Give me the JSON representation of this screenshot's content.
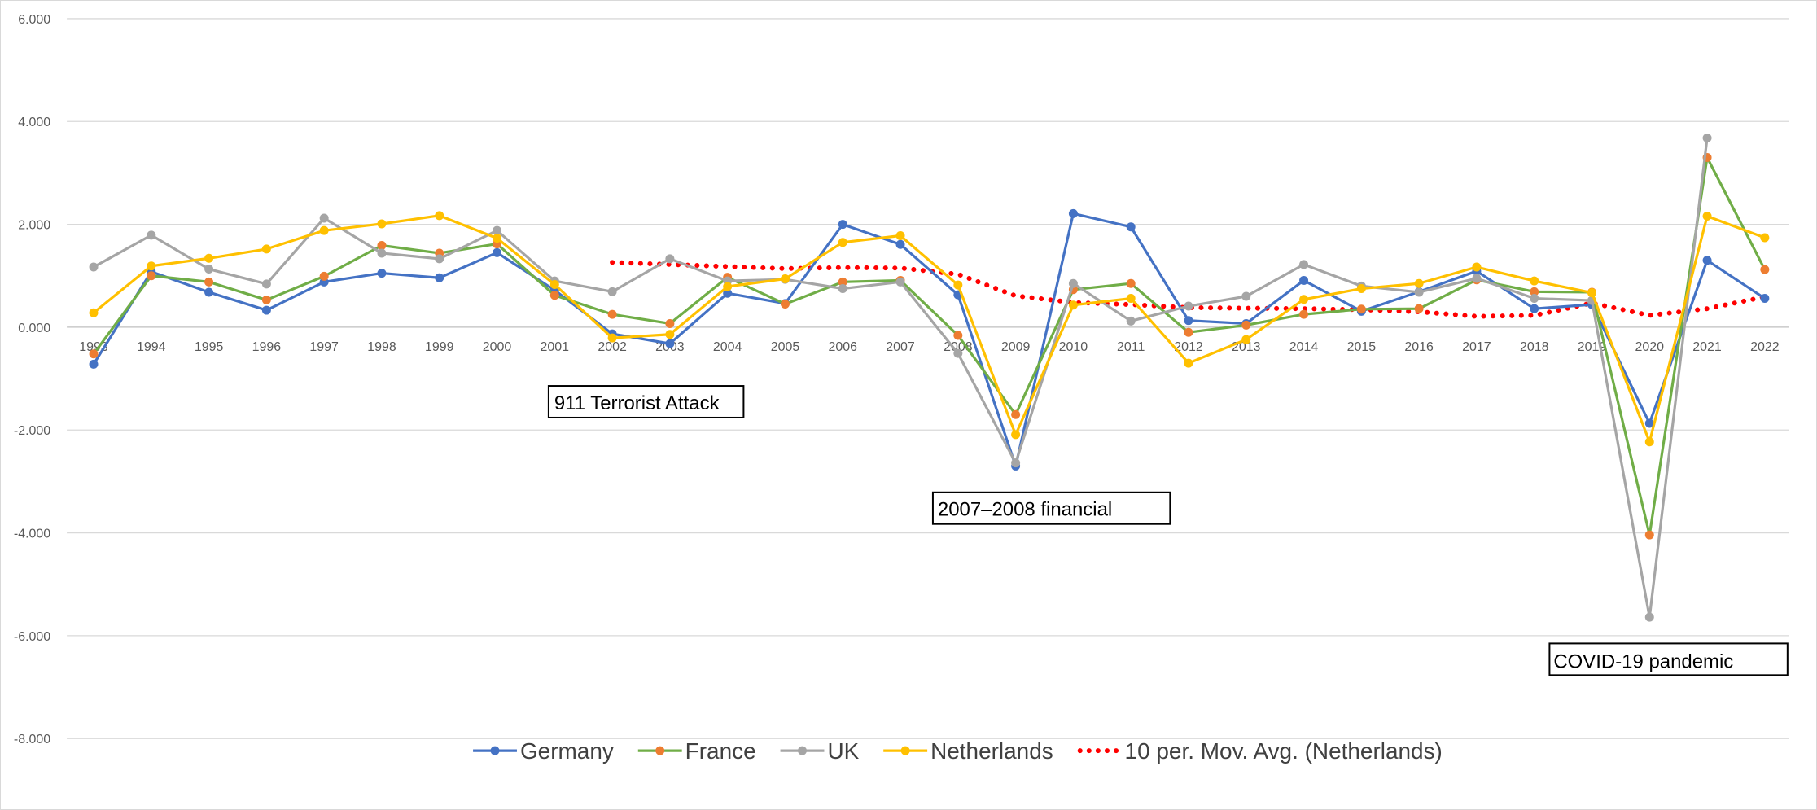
{
  "chart_data": {
    "type": "line",
    "title": "",
    "xlabel": "",
    "ylabel": "",
    "ylim": [
      -8,
      6
    ],
    "y_ticks": [
      "6.000",
      "4.000",
      "2.000",
      "0.000",
      "-2.000",
      "-4.000",
      "-6.000",
      "-8.000"
    ],
    "y_tick_values": [
      6,
      4,
      2,
      0,
      -2,
      -4,
      -6,
      -8
    ],
    "grid": true,
    "legend_position": "bottom",
    "categories": [
      "1993",
      "1994",
      "1995",
      "1996",
      "1997",
      "1998",
      "1999",
      "2000",
      "2001",
      "2002",
      "2003",
      "2004",
      "2005",
      "2006",
      "2007",
      "2008",
      "2009",
      "2010",
      "2011",
      "2012",
      "2013",
      "2014",
      "2015",
      "2016",
      "2017",
      "2018",
      "2019",
      "2020",
      "2021",
      "2022"
    ],
    "series": [
      {
        "name": "Germany",
        "color": "#4472c4",
        "values": [
          -0.72,
          1.08,
          0.68,
          0.33,
          0.88,
          1.05,
          0.96,
          1.45,
          0.72,
          -0.13,
          -0.32,
          0.66,
          0.46,
          2.0,
          1.61,
          0.63,
          -2.7,
          2.21,
          1.95,
          0.13,
          0.07,
          0.91,
          0.31,
          0.69,
          1.09,
          0.36,
          0.44,
          -1.87,
          1.3,
          0.56
        ]
      },
      {
        "name": "France",
        "color": "#70ad47",
        "values": [
          -0.52,
          1.0,
          0.88,
          0.53,
          0.99,
          1.59,
          1.44,
          1.62,
          0.62,
          0.25,
          0.07,
          0.97,
          0.45,
          0.88,
          0.91,
          -0.16,
          -1.7,
          0.73,
          0.85,
          -0.1,
          0.04,
          0.25,
          0.35,
          0.36,
          0.92,
          0.69,
          0.68,
          -4.04,
          3.3,
          1.12
        ]
      },
      {
        "name": "UK",
        "color": "#a5a5a5",
        "values": [
          1.17,
          1.79,
          1.13,
          0.84,
          2.12,
          1.44,
          1.33,
          1.88,
          0.9,
          0.69,
          1.33,
          0.9,
          0.93,
          0.75,
          0.88,
          -0.51,
          -2.64,
          0.85,
          0.12,
          0.41,
          0.6,
          1.22,
          0.8,
          0.68,
          0.95,
          0.56,
          0.52,
          -5.64,
          3.68,
          null
        ]
      },
      {
        "name": "Netherlands",
        "color": "#ffc000",
        "values": [
          0.28,
          1.19,
          1.34,
          1.52,
          1.88,
          2.01,
          2.17,
          1.73,
          0.83,
          -0.21,
          -0.14,
          0.79,
          0.94,
          1.65,
          1.78,
          0.82,
          -2.09,
          0.43,
          0.56,
          -0.7,
          -0.24,
          0.54,
          0.75,
          0.85,
          1.17,
          0.9,
          0.67,
          -2.23,
          2.16,
          1.74
        ]
      },
      {
        "name": "10 per. Mov. Avg. (Netherlands)",
        "color": "#ff0000",
        "trendline": true,
        "values": [
          null,
          null,
          null,
          null,
          null,
          null,
          null,
          null,
          null,
          1.26,
          1.22,
          1.18,
          1.14,
          1.16,
          1.15,
          1.03,
          0.61,
          0.48,
          0.44,
          0.38,
          0.37,
          0.36,
          0.34,
          0.3,
          0.21,
          0.23,
          0.47,
          0.23,
          0.36,
          0.59
        ]
      }
    ],
    "annotations": [
      {
        "text": "911 Terrorist Attack",
        "near_category": "2001"
      },
      {
        "text": "2007–2008 financial",
        "near_category": "2009"
      },
      {
        "text": "COVID-19 pandemic",
        "near_category": "2020"
      }
    ]
  }
}
